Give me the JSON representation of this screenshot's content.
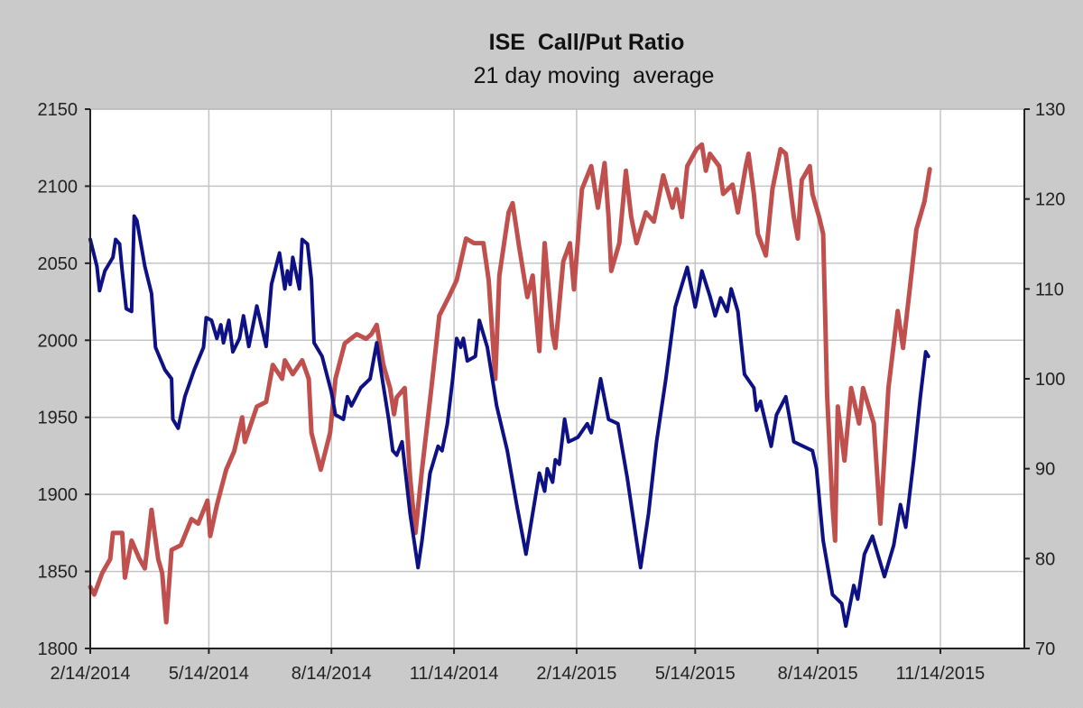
{
  "chart_data": {
    "type": "line",
    "title": "ISE  Call/Put Ratio",
    "subtitle": "21 day moving  average",
    "xlabel": "",
    "ylabel": "",
    "x_unit": "days since 2/14/2014",
    "xlim": [
      0,
      701
    ],
    "x_ticks": [
      {
        "value": 0,
        "label": "2/14/2014"
      },
      {
        "value": 89,
        "label": "5/14/2014"
      },
      {
        "value": 181,
        "label": "8/14/2014"
      },
      {
        "value": 273,
        "label": "11/14/2014"
      },
      {
        "value": 365,
        "label": "2/14/2015"
      },
      {
        "value": 454,
        "label": "5/14/2015"
      },
      {
        "value": 546,
        "label": "8/14/2015"
      },
      {
        "value": 638,
        "label": "11/14/2015"
      }
    ],
    "y_left": {
      "lim": [
        1800,
        2150
      ],
      "ticks": [
        "1800",
        "1850",
        "1900",
        "1950",
        "2000",
        "2050",
        "2100",
        "2150"
      ]
    },
    "y_right": {
      "lim": [
        70,
        130
      ],
      "ticks": [
        "70",
        "80",
        "90",
        "100",
        "110",
        "120",
        "130"
      ]
    },
    "grid": true,
    "series": [
      {
        "axis": "left",
        "color": "#c0504d",
        "points": [
          [
            0,
            1840
          ],
          [
            3,
            1835
          ],
          [
            9,
            1849
          ],
          [
            15,
            1858
          ],
          [
            17,
            1875
          ],
          [
            24,
            1875
          ],
          [
            26,
            1846
          ],
          [
            31,
            1870
          ],
          [
            37,
            1858
          ],
          [
            41,
            1852
          ],
          [
            46,
            1890
          ],
          [
            51,
            1858
          ],
          [
            54,
            1849
          ],
          [
            57,
            1817
          ],
          [
            61,
            1864
          ],
          [
            68,
            1867
          ],
          [
            76,
            1884
          ],
          [
            81,
            1881
          ],
          [
            88,
            1896
          ],
          [
            90,
            1873
          ],
          [
            95,
            1893
          ],
          [
            102,
            1916
          ],
          [
            108,
            1928
          ],
          [
            114,
            1950
          ],
          [
            116,
            1934
          ],
          [
            125,
            1957
          ],
          [
            132,
            1960
          ],
          [
            137,
            1984
          ],
          [
            144,
            1975
          ],
          [
            146,
            1987
          ],
          [
            152,
            1978
          ],
          [
            159,
            1987
          ],
          [
            164,
            1975
          ],
          [
            166,
            1940
          ],
          [
            173,
            1916
          ],
          [
            180,
            1940
          ],
          [
            184,
            1975
          ],
          [
            191,
            1998
          ],
          [
            200,
            2004
          ],
          [
            207,
            2001
          ],
          [
            211,
            2004
          ],
          [
            215,
            2010
          ],
          [
            220,
            1984
          ],
          [
            225,
            1969
          ],
          [
            228,
            1952
          ],
          [
            230,
            1963
          ],
          [
            236,
            1969
          ],
          [
            240,
            1911
          ],
          [
            244,
            1875
          ],
          [
            249,
            1916
          ],
          [
            256,
            1969
          ],
          [
            262,
            2016
          ],
          [
            269,
            2028
          ],
          [
            275,
            2039
          ],
          [
            282,
            2066
          ],
          [
            288,
            2063
          ],
          [
            295,
            2063
          ],
          [
            299,
            2039
          ],
          [
            304,
            1975
          ],
          [
            307,
            2042
          ],
          [
            314,
            2083
          ],
          [
            317,
            2089
          ],
          [
            322,
            2060
          ],
          [
            328,
            2028
          ],
          [
            332,
            2042
          ],
          [
            337,
            1993
          ],
          [
            341,
            2063
          ],
          [
            347,
            2004
          ],
          [
            349,
            1995
          ],
          [
            355,
            2051
          ],
          [
            360,
            2063
          ],
          [
            363,
            2033
          ],
          [
            369,
            2098
          ],
          [
            376,
            2113
          ],
          [
            381,
            2086
          ],
          [
            386,
            2115
          ],
          [
            389,
            2080
          ],
          [
            391,
            2045
          ],
          [
            397,
            2063
          ],
          [
            402,
            2110
          ],
          [
            406,
            2080
          ],
          [
            410,
            2063
          ],
          [
            417,
            2083
          ],
          [
            423,
            2077
          ],
          [
            430,
            2107
          ],
          [
            437,
            2086
          ],
          [
            440,
            2098
          ],
          [
            444,
            2080
          ],
          [
            448,
            2113
          ],
          [
            455,
            2124
          ],
          [
            459,
            2127
          ],
          [
            462,
            2110
          ],
          [
            465,
            2121
          ],
          [
            472,
            2113
          ],
          [
            475,
            2095
          ],
          [
            482,
            2101
          ],
          [
            486,
            2083
          ],
          [
            492,
            2113
          ],
          [
            494,
            2121
          ],
          [
            498,
            2095
          ],
          [
            501,
            2069
          ],
          [
            507,
            2055
          ],
          [
            512,
            2098
          ],
          [
            518,
            2124
          ],
          [
            522,
            2121
          ],
          [
            528,
            2080
          ],
          [
            531,
            2066
          ],
          [
            534,
            2104
          ],
          [
            540,
            2113
          ],
          [
            542,
            2095
          ],
          [
            547,
            2080
          ],
          [
            550,
            2069
          ],
          [
            553,
            1964
          ],
          [
            557,
            1893
          ],
          [
            559,
            1870
          ],
          [
            561,
            1957
          ],
          [
            566,
            1922
          ],
          [
            571,
            1969
          ],
          [
            577,
            1946
          ],
          [
            580,
            1969
          ],
          [
            588,
            1946
          ],
          [
            593,
            1881
          ],
          [
            599,
            1969
          ],
          [
            606,
            2019
          ],
          [
            610,
            1995
          ],
          [
            615,
            2033
          ],
          [
            620,
            2072
          ],
          [
            626,
            2090
          ],
          [
            630,
            2111
          ]
        ]
      },
      {
        "axis": "right",
        "color": "#0d1183",
        "points": [
          [
            0,
            115.5
          ],
          [
            5,
            112.5
          ],
          [
            7,
            109.8
          ],
          [
            11,
            112.0
          ],
          [
            17,
            113.5
          ],
          [
            19,
            115.5
          ],
          [
            22,
            115.0
          ],
          [
            24,
            112.0
          ],
          [
            27,
            107.8
          ],
          [
            31,
            107.5
          ],
          [
            33,
            118.1
          ],
          [
            35,
            117.6
          ],
          [
            41,
            112.5
          ],
          [
            46,
            109.5
          ],
          [
            49,
            103.5
          ],
          [
            56,
            101.0
          ],
          [
            61,
            100.0
          ],
          [
            62,
            95.5
          ],
          [
            66,
            94.5
          ],
          [
            71,
            98.0
          ],
          [
            78,
            101.0
          ],
          [
            85,
            103.5
          ],
          [
            87,
            106.8
          ],
          [
            91,
            106.5
          ],
          [
            95,
            104.5
          ],
          [
            98,
            106.0
          ],
          [
            100,
            104.0
          ],
          [
            104,
            106.5
          ],
          [
            107,
            103.0
          ],
          [
            112,
            104.5
          ],
          [
            115,
            107.0
          ],
          [
            119,
            103.6
          ],
          [
            125,
            108.1
          ],
          [
            132,
            103.6
          ],
          [
            136,
            110.5
          ],
          [
            142,
            114.0
          ],
          [
            146,
            110.0
          ],
          [
            148,
            112.0
          ],
          [
            150,
            110.5
          ],
          [
            152,
            113.5
          ],
          [
            157,
            110.0
          ],
          [
            159,
            115.5
          ],
          [
            163,
            115.0
          ],
          [
            166,
            111.0
          ],
          [
            168,
            104.0
          ],
          [
            174,
            102.5
          ],
          [
            181,
            98.5
          ],
          [
            184,
            96.0
          ],
          [
            190,
            95.5
          ],
          [
            193,
            98.0
          ],
          [
            196,
            97.0
          ],
          [
            203,
            99.0
          ],
          [
            210,
            100.0
          ],
          [
            215,
            104.0
          ],
          [
            217,
            102.0
          ],
          [
            224,
            95.5
          ],
          [
            227,
            92.0
          ],
          [
            230,
            91.5
          ],
          [
            234,
            93.0
          ],
          [
            240,
            85.0
          ],
          [
            246,
            79.0
          ],
          [
            249,
            82.0
          ],
          [
            255,
            89.5
          ],
          [
            261,
            92.5
          ],
          [
            264,
            92.0
          ],
          [
            268,
            95.0
          ],
          [
            272,
            100.0
          ],
          [
            275,
            104.5
          ],
          [
            278,
            103.5
          ],
          [
            280,
            104.5
          ],
          [
            283,
            102.0
          ],
          [
            289,
            102.5
          ],
          [
            292,
            106.5
          ],
          [
            298,
            103.5
          ],
          [
            305,
            97.0
          ],
          [
            313,
            92.0
          ],
          [
            320,
            86.0
          ],
          [
            327,
            80.5
          ],
          [
            332,
            85.0
          ],
          [
            337,
            89.5
          ],
          [
            341,
            87.5
          ],
          [
            343,
            90.0
          ],
          [
            347,
            88.5
          ],
          [
            349,
            91.0
          ],
          [
            352,
            90.5
          ],
          [
            356,
            95.5
          ],
          [
            359,
            93.0
          ],
          [
            366,
            93.5
          ],
          [
            373,
            95.0
          ],
          [
            376,
            94.0
          ],
          [
            383,
            100.0
          ],
          [
            389,
            95.5
          ],
          [
            396,
            95.0
          ],
          [
            403,
            89.0
          ],
          [
            410,
            82.0
          ],
          [
            413,
            79.0
          ],
          [
            419,
            85.0
          ],
          [
            425,
            93.0
          ],
          [
            432,
            100.0
          ],
          [
            439,
            108.0
          ],
          [
            448,
            112.4
          ],
          [
            454,
            108.0
          ],
          [
            456,
            109.5
          ],
          [
            459,
            112.0
          ],
          [
            465,
            109.2
          ],
          [
            469,
            107.0
          ],
          [
            473,
            109.0
          ],
          [
            478,
            107.5
          ],
          [
            481,
            110.0
          ],
          [
            486,
            107.5
          ],
          [
            491,
            100.5
          ],
          [
            498,
            99.0
          ],
          [
            500,
            96.5
          ],
          [
            503,
            97.5
          ],
          [
            511,
            92.5
          ],
          [
            515,
            96.0
          ],
          [
            522,
            98.0
          ],
          [
            528,
            93.0
          ],
          [
            542,
            92.0
          ],
          [
            545,
            90.0
          ],
          [
            550,
            82.0
          ],
          [
            557,
            76.0
          ],
          [
            564,
            75.0
          ],
          [
            567,
            72.5
          ],
          [
            573,
            77.0
          ],
          [
            576,
            75.5
          ],
          [
            581,
            80.5
          ],
          [
            587,
            82.5
          ],
          [
            589,
            81.5
          ],
          [
            596,
            78.0
          ],
          [
            603,
            81.5
          ],
          [
            608,
            86.0
          ],
          [
            612,
            83.5
          ],
          [
            618,
            91.0
          ],
          [
            623,
            98.0
          ],
          [
            627,
            103.0
          ],
          [
            629,
            102.5
          ]
        ]
      }
    ]
  }
}
